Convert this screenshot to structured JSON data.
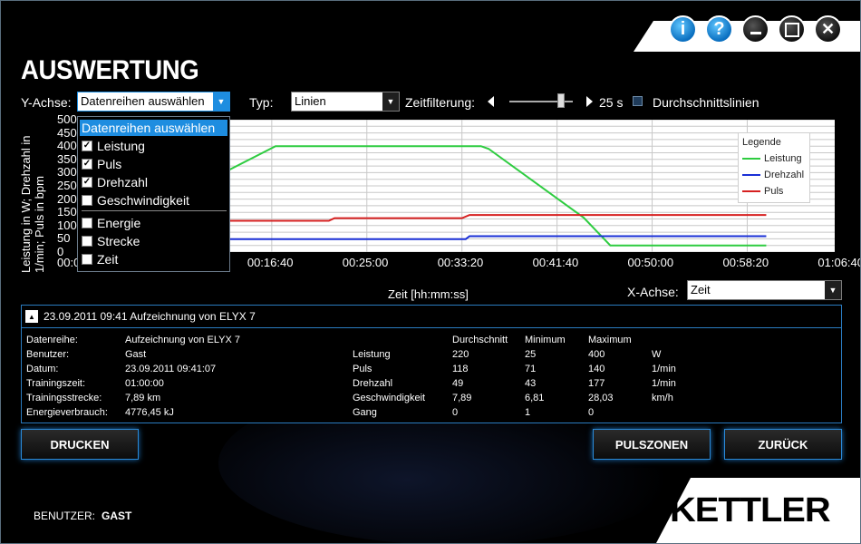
{
  "window": {
    "title": "AUSWERTUNG",
    "buttons": [
      {
        "icon": "info-icon",
        "glyph": "i"
      },
      {
        "icon": "help-icon",
        "glyph": "?"
      },
      {
        "icon": "minimize-icon",
        "glyph": "_"
      },
      {
        "icon": "maximize-icon",
        "glyph": "☐"
      },
      {
        "icon": "close-icon",
        "glyph": "✕"
      }
    ]
  },
  "toolbar": {
    "y_axis_label": "Y-Achse:",
    "y_axis_value": "Datenreihen auswählen",
    "type_label": "Typ:",
    "type_value": "Linien",
    "time_filter_label": "Zeitfilterung:",
    "time_filter_value": "25 s",
    "avg_lines_label": "Durchschnittslinien",
    "avg_lines_checked": false
  },
  "dropdown": {
    "items": [
      {
        "label": "Datenreihen auswählen",
        "checkbox": false,
        "checked": false,
        "selected": true
      },
      {
        "label": "Leistung",
        "checkbox": true,
        "checked": true
      },
      {
        "label": "Puls",
        "checkbox": true,
        "checked": true
      },
      {
        "label": "Drehzahl",
        "checkbox": true,
        "checked": true
      },
      {
        "label": "Geschwindigkeit",
        "checkbox": true,
        "checked": false
      },
      {
        "label": "Energie",
        "checkbox": true,
        "checked": false
      },
      {
        "label": "Strecke",
        "checkbox": true,
        "checked": false
      },
      {
        "label": "Zeit",
        "checkbox": true,
        "checked": false
      }
    ]
  },
  "chart_data": {
    "type": "line",
    "ylabel": "Leistung in W; Drehzahl in 1/min; Puls in bpm",
    "xlabel": "Zeit [hh:mm:ss]",
    "ylim": [
      0,
      500
    ],
    "xlim": [
      0,
      3960
    ],
    "y_ticks": [
      "500",
      "450",
      "400",
      "350",
      "300",
      "250",
      "200",
      "150",
      "100",
      "50",
      "0"
    ],
    "x_ticks": [
      "00:00:00",
      "00:16:40",
      "00:25:00",
      "00:33:20",
      "00:41:40",
      "00:50:00",
      "00:58:20",
      "01:06:40"
    ],
    "x_tick_values": [
      0,
      1000,
      1500,
      2000,
      2500,
      3000,
      3500,
      4000
    ],
    "grid": true,
    "legend_title": "Legende",
    "legend_position": "top-right",
    "series": [
      {
        "name": "Leistung",
        "color": "#2ecc40",
        "points": [
          [
            0,
            25
          ],
          [
            1020,
            400
          ],
          [
            2100,
            400
          ],
          [
            2140,
            390
          ],
          [
            2640,
            130
          ],
          [
            2780,
            25
          ],
          [
            3600,
            25
          ]
        ]
      },
      {
        "name": "Drehzahl",
        "color": "#1a2fd6",
        "points": [
          [
            0,
            49
          ],
          [
            2020,
            49
          ],
          [
            2040,
            60
          ],
          [
            3600,
            60
          ]
        ]
      },
      {
        "name": "Puls",
        "color": "#d62020",
        "points": [
          [
            0,
            118
          ],
          [
            1300,
            118
          ],
          [
            1330,
            128
          ],
          [
            2000,
            128
          ],
          [
            2040,
            140
          ],
          [
            3600,
            140
          ]
        ]
      }
    ]
  },
  "x_axis_selector": {
    "label": "X-Achse:",
    "value": "Zeit"
  },
  "recording": {
    "header": "23.09.2011 09:41 Aufzeichnung von ELYX 7",
    "info": [
      {
        "label": "Datenreihe:",
        "value": "Aufzeichnung von ELYX 7"
      },
      {
        "label": "Benutzer:",
        "value": " Gast"
      },
      {
        "label": "Datum:",
        "value": "23.09.2011 09:41:07"
      },
      {
        "label": "Trainingszeit:",
        "value": "01:00:00"
      },
      {
        "label": "Trainingsstrecke:",
        "value": "7,89 km"
      },
      {
        "label": "Energieverbrauch:",
        "value": "4776,45 kJ"
      }
    ],
    "stats_headers": [
      "Durchschnitt",
      "Minimum",
      "Maximum"
    ],
    "stats": [
      {
        "name": "Leistung",
        "avg": "220",
        "min": "25",
        "max": "400",
        "unit": "W"
      },
      {
        "name": "Puls",
        "avg": "118",
        "min": "71",
        "max": "140",
        "unit": "1/min"
      },
      {
        "name": "Drehzahl",
        "avg": "49",
        "min": "43",
        "max": "177",
        "unit": "1/min"
      },
      {
        "name": "Geschwindigkeit",
        "avg": "7,89",
        "min": "6,81",
        "max": "28,03",
        "unit": "km/h"
      },
      {
        "name": "Gang",
        "avg": "0",
        "min": "1",
        "max": "0",
        "unit": ""
      }
    ]
  },
  "actions": {
    "print": "DRUCKEN",
    "pulse_zones": "PULSZONEN",
    "back": "ZURÜCK"
  },
  "footer": {
    "user_label": "BENUTZER:",
    "user_value": "GAST",
    "brand": "KETTLER"
  }
}
